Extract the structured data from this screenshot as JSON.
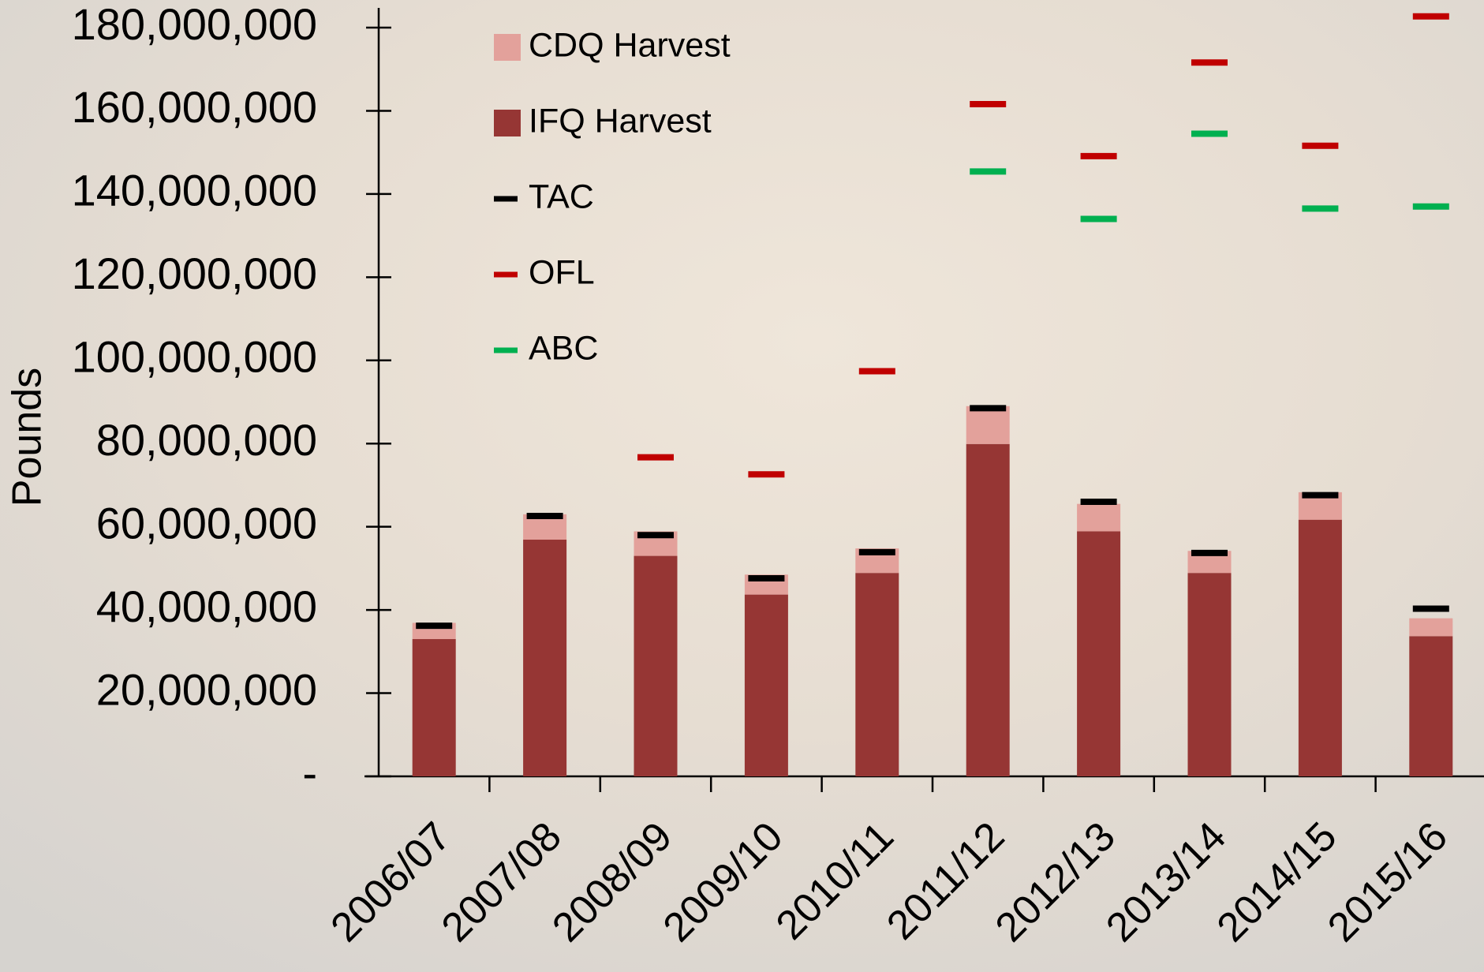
{
  "chart_data": {
    "type": "bar",
    "y_label": "Pounds",
    "categories": [
      "2006/07",
      "2007/08",
      "2008/09",
      "2009/10",
      "2010/11",
      "2011/12",
      "2012/13",
      "2013/14",
      "2014/15",
      "2015/16"
    ],
    "series": [
      {
        "name": "CDQ Harvest",
        "style": "stacked-bar",
        "color": "#e3a19b",
        "values": [
          3900000,
          6100000,
          5900000,
          4800000,
          5900000,
          9100000,
          6600000,
          5300000,
          6600000,
          4300000
        ]
      },
      {
        "name": "IFQ Harvest",
        "style": "stacked-bar",
        "color": "#963634",
        "values": [
          33000000,
          56900000,
          53000000,
          43700000,
          48900000,
          79900000,
          58900000,
          48900000,
          61700000,
          33700000
        ]
      },
      {
        "name": "TAC",
        "style": "dash",
        "color": "#000000",
        "values": [
          36200000,
          62600000,
          58000000,
          47600000,
          53900000,
          88500000,
          66000000,
          53700000,
          67600000,
          40300000
        ]
      },
      {
        "name": "OFL",
        "style": "dash",
        "color": "#c00000",
        "values": [
          null,
          null,
          76700000,
          72600000,
          97400000,
          161600000,
          149100000,
          171600000,
          151600000,
          182700000
        ]
      },
      {
        "name": "ABC",
        "style": "dash",
        "color": "#00b050",
        "values": [
          null,
          null,
          null,
          null,
          null,
          145400000,
          134000000,
          154500000,
          136500000,
          137000000
        ]
      }
    ],
    "ylim": [
      0,
      180000000
    ],
    "yticks": [
      {
        "value": 0,
        "label": "-"
      },
      {
        "value": 20000000,
        "label": "20,000,000"
      },
      {
        "value": 40000000,
        "label": "40,000,000"
      },
      {
        "value": 60000000,
        "label": "60,000,000"
      },
      {
        "value": 80000000,
        "label": "80,000,000"
      },
      {
        "value": 100000000,
        "label": "100,000,000"
      },
      {
        "value": 120000000,
        "label": "120,000,000"
      },
      {
        "value": 140000000,
        "label": "140,000,000"
      },
      {
        "value": 160000000,
        "label": "160,000,000"
      },
      {
        "value": 180000000,
        "label": "180,000,000"
      }
    ],
    "legend": "top-left"
  }
}
